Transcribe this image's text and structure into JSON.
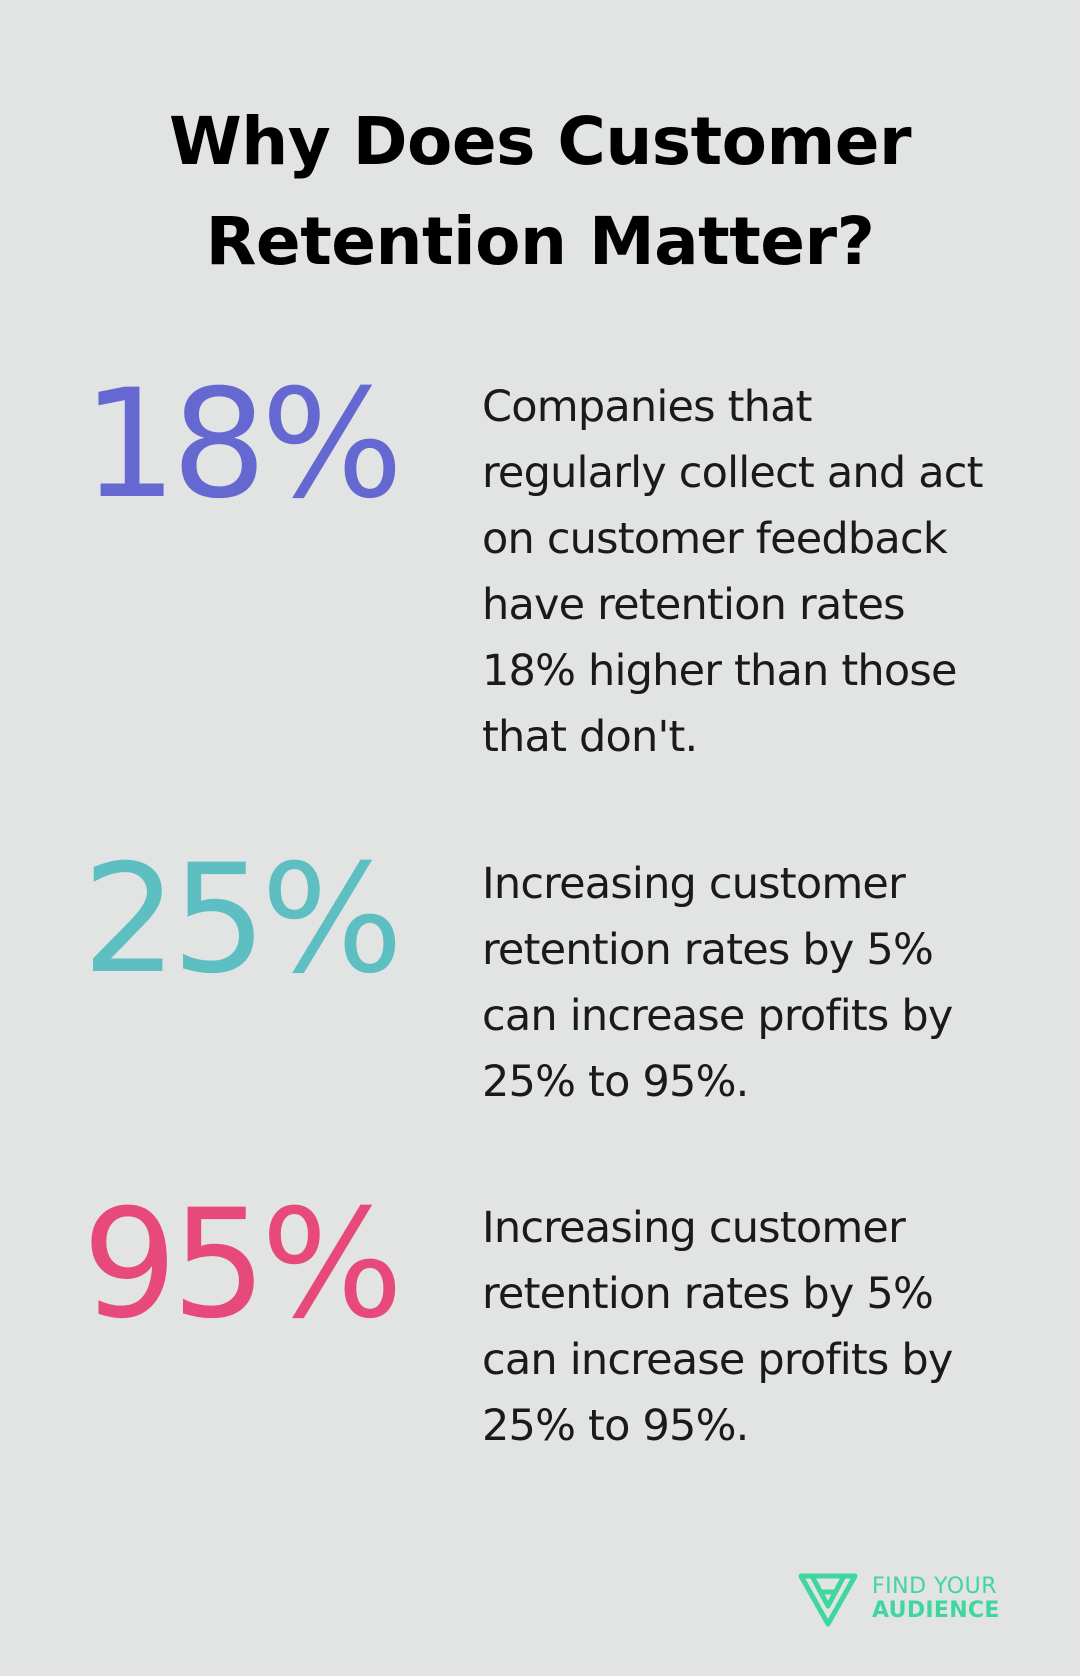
{
  "header": {
    "title": "Why Does Customer Retention Matter?"
  },
  "stats": [
    {
      "value": "18%",
      "color": "#6668d2",
      "description": "Companies that regularly collect and act on customer feedback have retention rates 18% higher than those that don't."
    },
    {
      "value": "25%",
      "color": "#5dbfc2",
      "description": "Increasing customer retention rates by 5% can increase profits by 25% to 95%."
    },
    {
      "value": "95%",
      "color": "#e6497a",
      "description": "Increasing customer retention rates by 5% can increase profits by 25% to 95%."
    }
  ],
  "brand": {
    "line1": "FIND YOUR",
    "line2": "AUDIENCE",
    "color": "#3fd6a0",
    "icon": "triangle-logo-icon"
  }
}
